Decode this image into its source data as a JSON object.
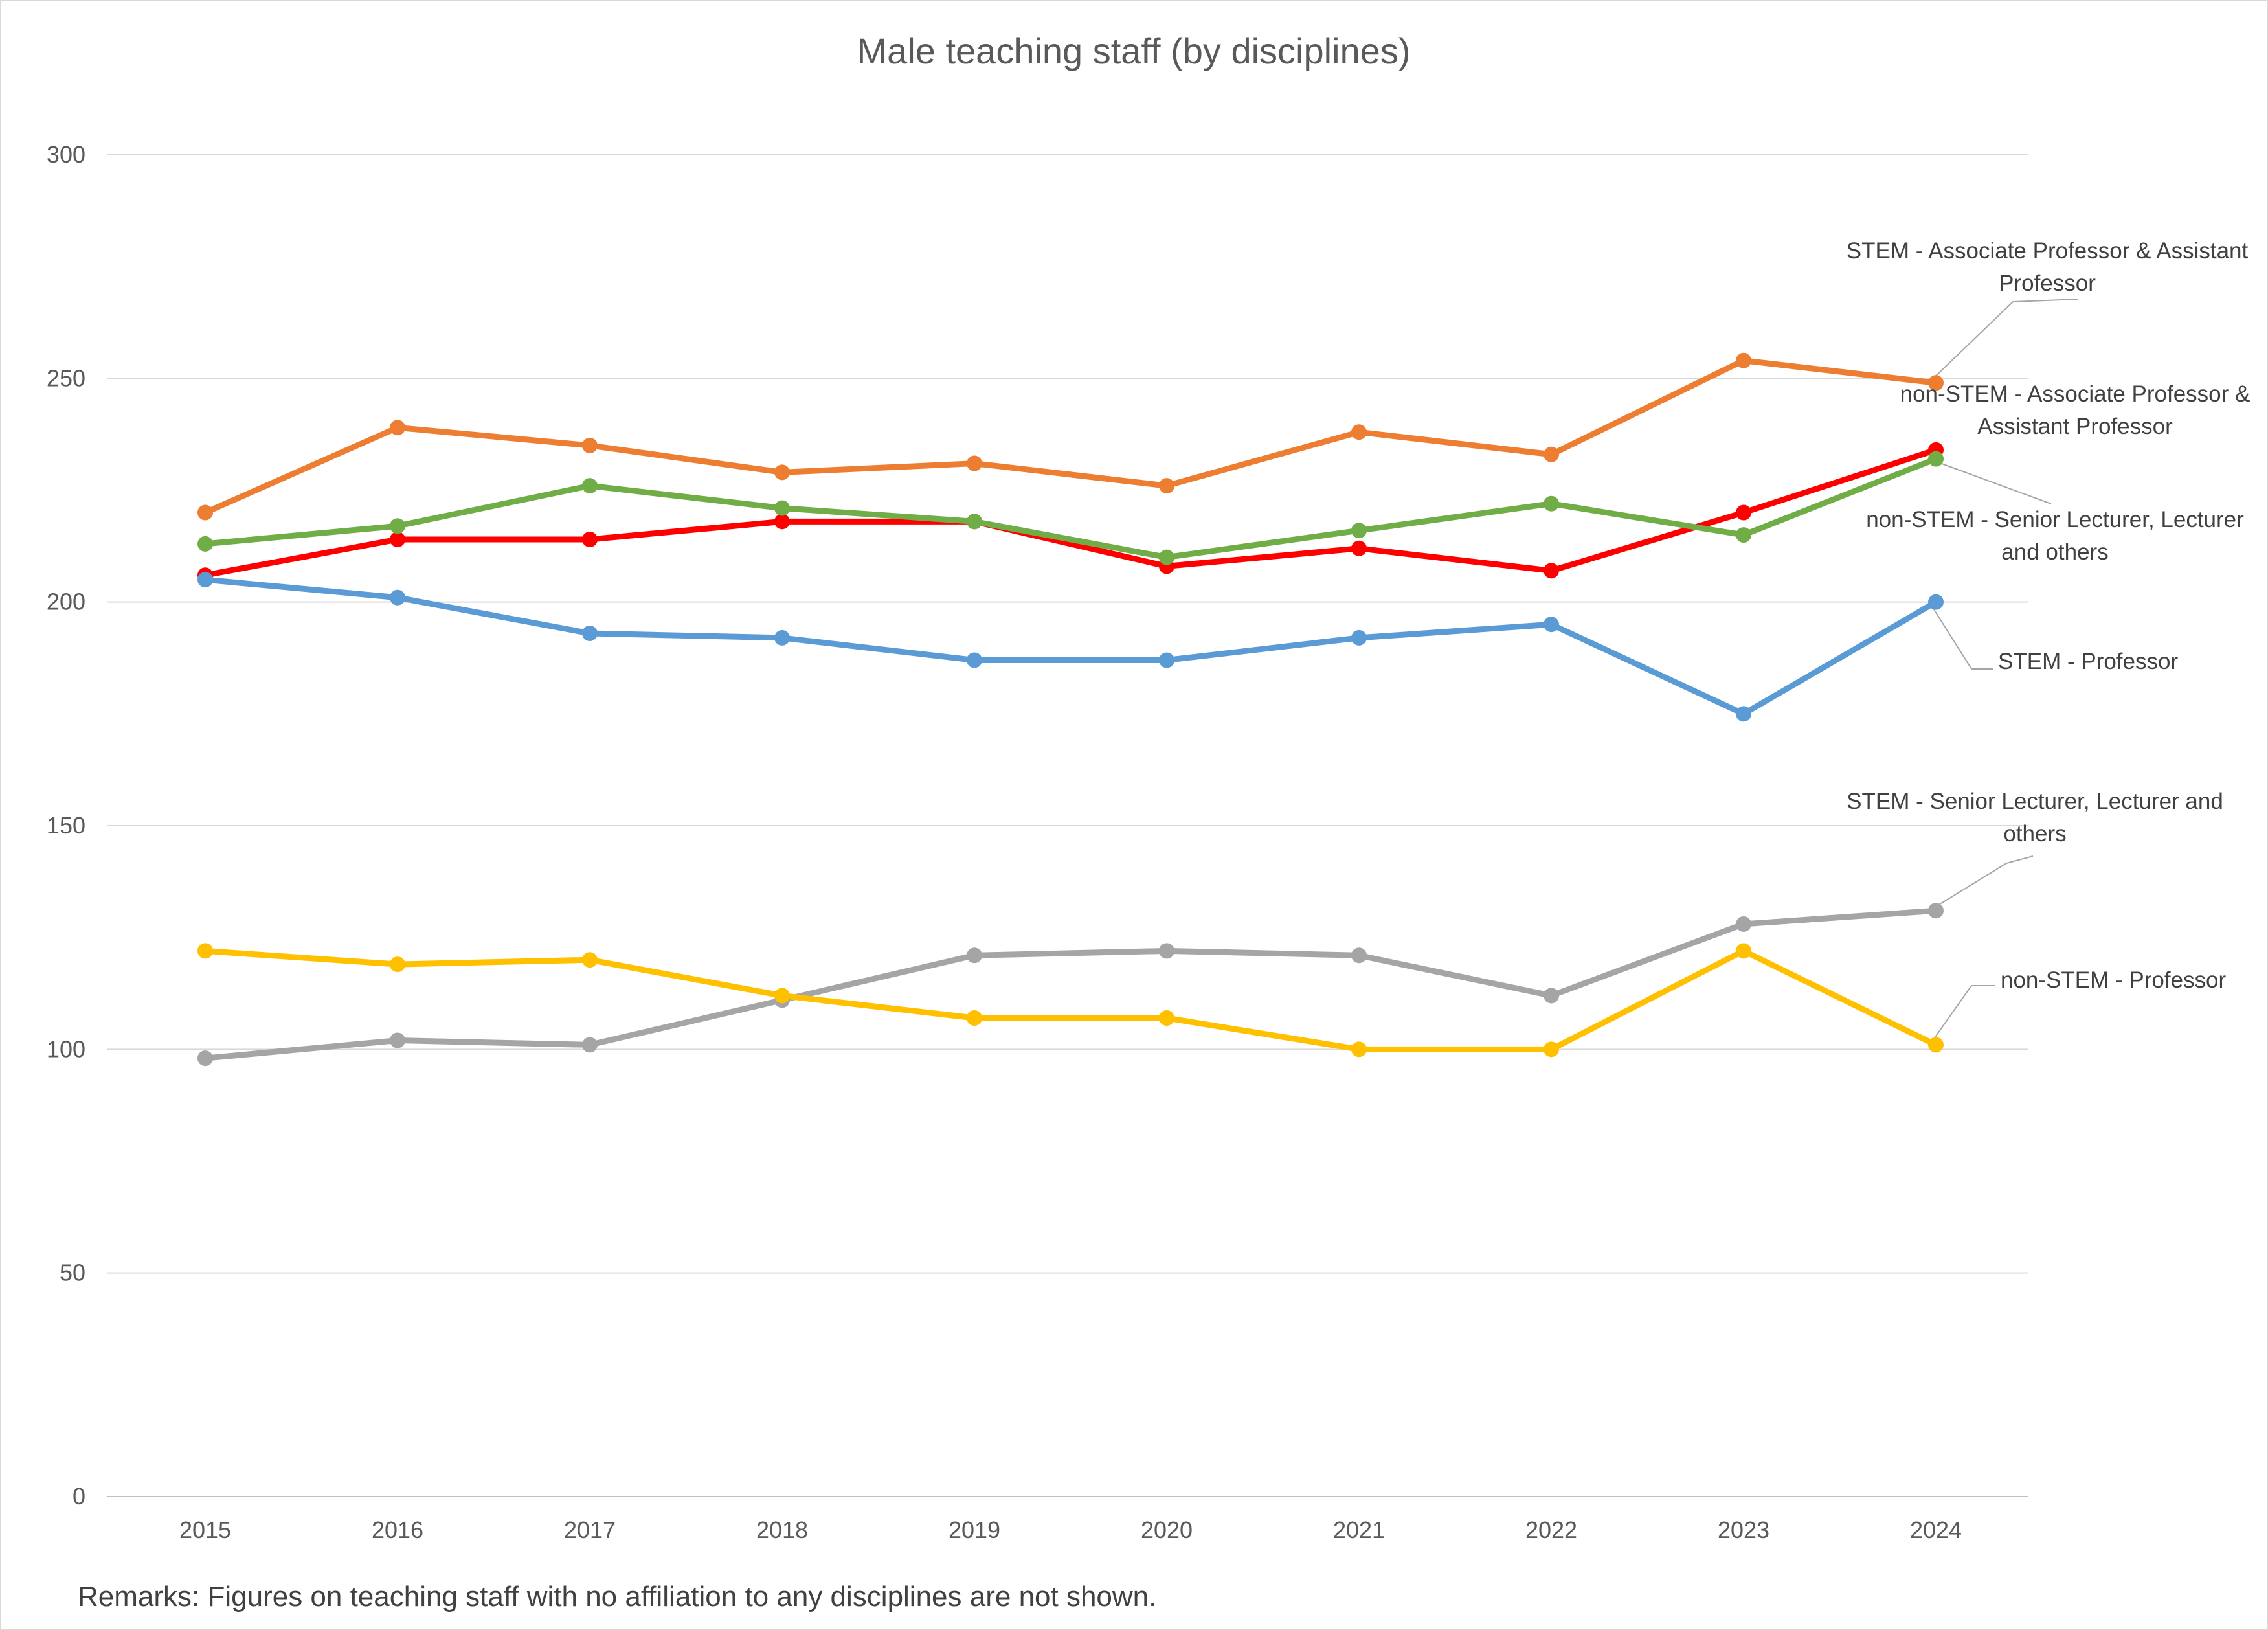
{
  "chart_data": {
    "type": "line",
    "title": "Male teaching staff (by disciplines)",
    "xlabel": "",
    "ylabel": "",
    "x": [
      "2015",
      "2016",
      "2017",
      "2018",
      "2019",
      "2020",
      "2021",
      "2022",
      "2023",
      "2024"
    ],
    "ylim": [
      0,
      300
    ],
    "y_ticks": [
      "0",
      "50",
      "100",
      "150",
      "200",
      "250",
      "300"
    ],
    "grid": true,
    "legend": "none (series labelled at line ends)",
    "series": [
      {
        "name": "STEM - Associate Professor & Assistant Professor",
        "label_lines": [
          "STEM - Associate Professor & Assistant",
          "Professor"
        ],
        "color": "#ED7D31",
        "values": [
          220,
          239,
          235,
          229,
          231,
          226,
          238,
          233,
          254,
          249
        ]
      },
      {
        "name": "non-STEM - Associate Professor & Assistant Professor",
        "label_lines": [
          "non-STEM - Associate Professor &",
          "Assistant Professor"
        ],
        "color": "#FF0000",
        "values": [
          206,
          214,
          214,
          218,
          218,
          208,
          212,
          207,
          220,
          234
        ]
      },
      {
        "name": "non-STEM - Senior Lecturer, Lecturer and others",
        "label_lines": [
          "non-STEM - Senior Lecturer, Lecturer",
          "and others"
        ],
        "color": "#70AD47",
        "values": [
          213,
          217,
          226,
          221,
          218,
          210,
          216,
          222,
          215,
          232
        ]
      },
      {
        "name": "STEM - Professor",
        "label_lines": [
          "STEM - Professor"
        ],
        "color": "#5B9BD5",
        "values": [
          205,
          201,
          193,
          192,
          187,
          187,
          192,
          195,
          175,
          200
        ]
      },
      {
        "name": "STEM - Senior Lecturer, Lecturer and others",
        "label_lines": [
          "STEM - Senior Lecturer, Lecturer and",
          "others"
        ],
        "color": "#A5A5A5",
        "values": [
          98,
          102,
          101,
          111,
          121,
          122,
          121,
          112,
          128,
          131
        ]
      },
      {
        "name": "non-STEM - Professor",
        "label_lines": [
          "non-STEM - Professor"
        ],
        "color": "#FFC000",
        "values": [
          122,
          119,
          120,
          112,
          107,
          107,
          100,
          100,
          122,
          101
        ]
      }
    ]
  },
  "remarks": "Remarks: Figures on teaching staff with no affiliation to any disciplines are not shown."
}
